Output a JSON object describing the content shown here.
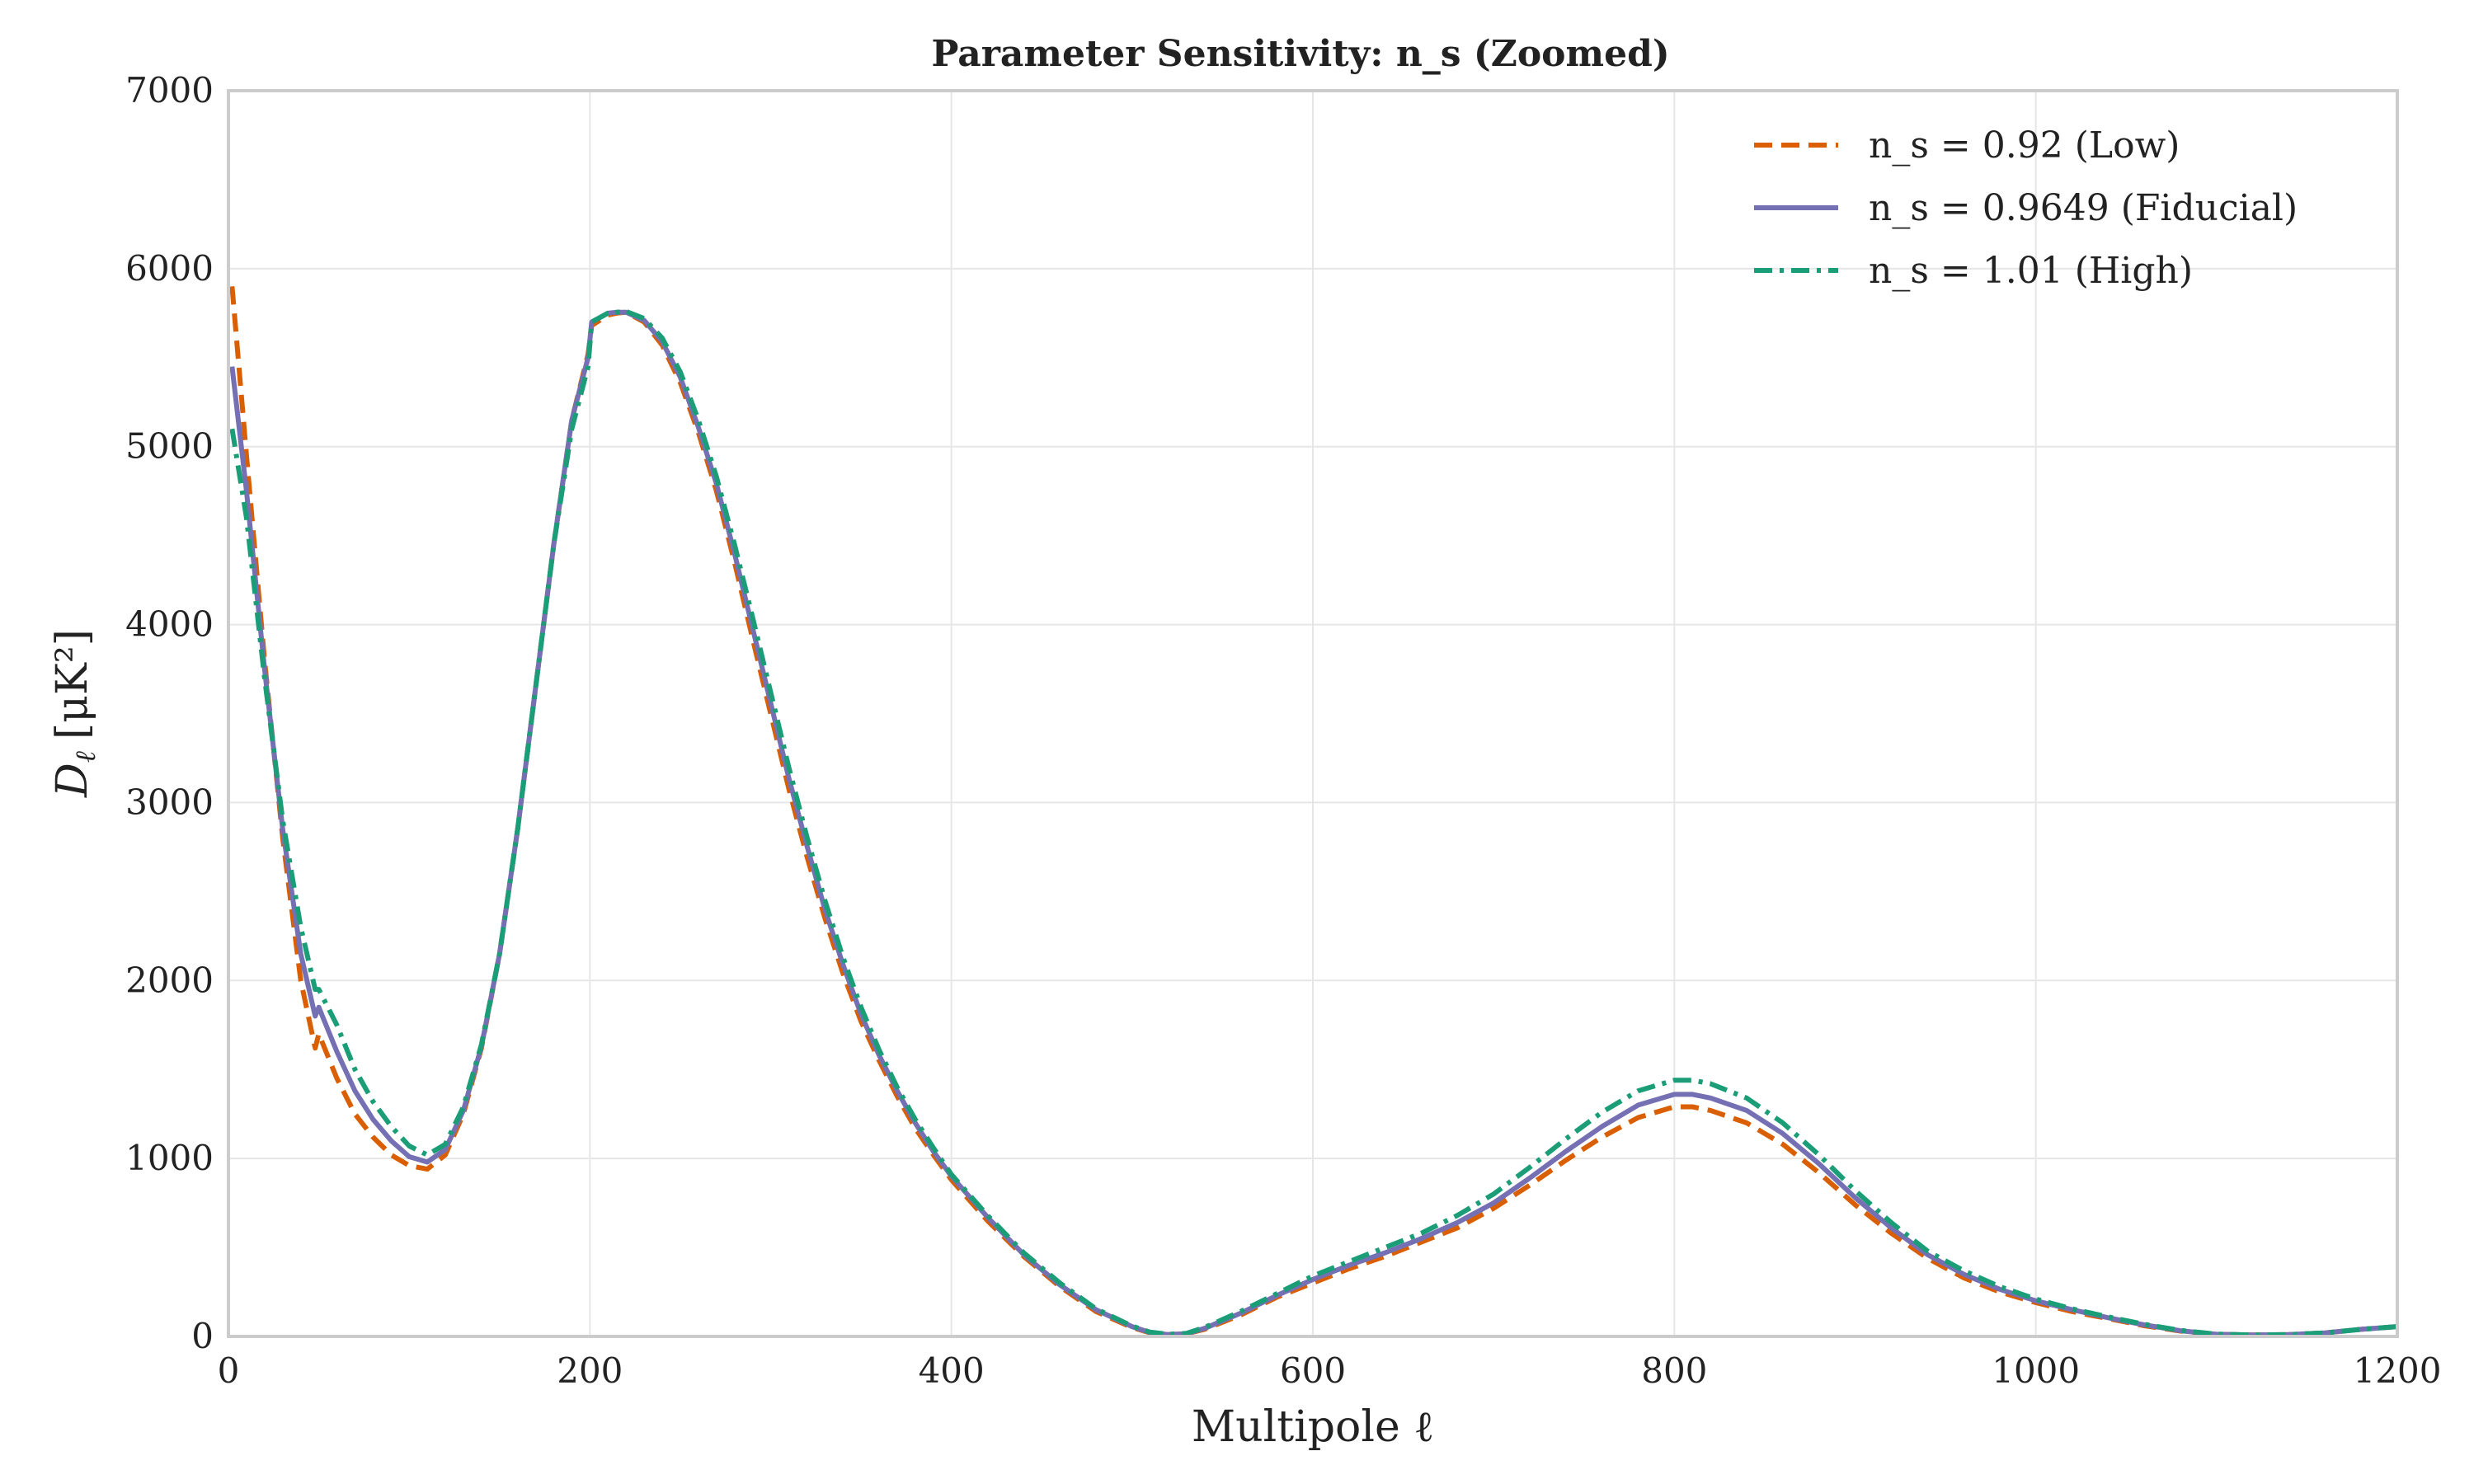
{
  "chart_data": {
    "type": "line",
    "title": "Parameter Sensitivity: n_s (Zoomed)",
    "xlabel": "Multipole ℓ",
    "ylabel_main": "D",
    "ylabel_sub": "ℓ",
    "ylabel_unit": "[μK²]",
    "xlim": [
      0,
      1200
    ],
    "ylim": [
      0,
      7000
    ],
    "x_ticks": [
      0,
      200,
      400,
      600,
      800,
      1000,
      1200
    ],
    "y_ticks": [
      0,
      1000,
      2000,
      3000,
      4000,
      5000,
      6000,
      7000
    ],
    "grid": true,
    "legend_position": "top-right",
    "series": [
      {
        "name": "n_s = 0.92 (Low)",
        "color": "#d95f02",
        "style": "dashed",
        "points": [
          [
            2,
            5900
          ],
          [
            10,
            4950
          ],
          [
            20,
            3800
          ],
          [
            30,
            2800
          ],
          [
            40,
            2000
          ],
          [
            48,
            1620
          ],
          [
            50,
            1700
          ],
          [
            60,
            1450
          ],
          [
            70,
            1250
          ],
          [
            80,
            1120
          ],
          [
            90,
            1020
          ],
          [
            100,
            960
          ],
          [
            110,
            940
          ],
          [
            120,
            1020
          ],
          [
            130,
            1250
          ],
          [
            140,
            1620
          ],
          [
            150,
            2150
          ],
          [
            160,
            2850
          ],
          [
            170,
            3650
          ],
          [
            180,
            4450
          ],
          [
            190,
            5150
          ],
          [
            199,
            5520
          ],
          [
            201,
            5680
          ],
          [
            210,
            5740
          ],
          [
            215,
            5750
          ],
          [
            220,
            5755
          ],
          [
            230,
            5700
          ],
          [
            240,
            5570
          ],
          [
            250,
            5360
          ],
          [
            260,
            5080
          ],
          [
            270,
            4750
          ],
          [
            280,
            4350
          ],
          [
            290,
            3920
          ],
          [
            300,
            3500
          ],
          [
            310,
            3080
          ],
          [
            320,
            2700
          ],
          [
            330,
            2350
          ],
          [
            340,
            2040
          ],
          [
            350,
            1770
          ],
          [
            360,
            1550
          ],
          [
            370,
            1350
          ],
          [
            380,
            1170
          ],
          [
            390,
            1020
          ],
          [
            400,
            880
          ],
          [
            420,
            650
          ],
          [
            440,
            450
          ],
          [
            460,
            280
          ],
          [
            480,
            140
          ],
          [
            500,
            50
          ],
          [
            510,
            20
          ],
          [
            520,
            10
          ],
          [
            530,
            15
          ],
          [
            540,
            40
          ],
          [
            560,
            120
          ],
          [
            580,
            220
          ],
          [
            600,
            300
          ],
          [
            620,
            380
          ],
          [
            640,
            450
          ],
          [
            660,
            530
          ],
          [
            680,
            610
          ],
          [
            700,
            720
          ],
          [
            720,
            850
          ],
          [
            740,
            990
          ],
          [
            760,
            1120
          ],
          [
            780,
            1230
          ],
          [
            800,
            1290
          ],
          [
            810,
            1290
          ],
          [
            820,
            1270
          ],
          [
            840,
            1200
          ],
          [
            860,
            1080
          ],
          [
            880,
            920
          ],
          [
            900,
            740
          ],
          [
            920,
            580
          ],
          [
            940,
            440
          ],
          [
            960,
            330
          ],
          [
            980,
            250
          ],
          [
            1000,
            190
          ],
          [
            1020,
            140
          ],
          [
            1040,
            100
          ],
          [
            1060,
            60
          ],
          [
            1080,
            30
          ],
          [
            1100,
            12
          ],
          [
            1120,
            8
          ],
          [
            1140,
            10
          ],
          [
            1160,
            20
          ],
          [
            1180,
            40
          ],
          [
            1200,
            55
          ]
        ]
      },
      {
        "name": "n_s = 0.9649 (Fiducial)",
        "color": "#7570b3",
        "style": "solid",
        "points": [
          [
            2,
            5450
          ],
          [
            10,
            4750
          ],
          [
            20,
            3750
          ],
          [
            30,
            2850
          ],
          [
            40,
            2150
          ],
          [
            48,
            1800
          ],
          [
            50,
            1850
          ],
          [
            60,
            1600
          ],
          [
            70,
            1380
          ],
          [
            80,
            1220
          ],
          [
            90,
            1100
          ],
          [
            100,
            1010
          ],
          [
            110,
            980
          ],
          [
            120,
            1050
          ],
          [
            130,
            1270
          ],
          [
            140,
            1630
          ],
          [
            150,
            2150
          ],
          [
            160,
            2850
          ],
          [
            170,
            3650
          ],
          [
            180,
            4450
          ],
          [
            190,
            5150
          ],
          [
            199,
            5500
          ],
          [
            201,
            5700
          ],
          [
            210,
            5750
          ],
          [
            215,
            5755
          ],
          [
            220,
            5755
          ],
          [
            230,
            5710
          ],
          [
            240,
            5590
          ],
          [
            250,
            5390
          ],
          [
            260,
            5110
          ],
          [
            270,
            4790
          ],
          [
            280,
            4400
          ],
          [
            290,
            3980
          ],
          [
            300,
            3560
          ],
          [
            310,
            3140
          ],
          [
            320,
            2760
          ],
          [
            330,
            2400
          ],
          [
            340,
            2090
          ],
          [
            350,
            1810
          ],
          [
            360,
            1580
          ],
          [
            370,
            1380
          ],
          [
            380,
            1200
          ],
          [
            390,
            1040
          ],
          [
            400,
            900
          ],
          [
            420,
            670
          ],
          [
            440,
            460
          ],
          [
            460,
            290
          ],
          [
            480,
            150
          ],
          [
            500,
            55
          ],
          [
            510,
            22
          ],
          [
            520,
            10
          ],
          [
            530,
            15
          ],
          [
            540,
            45
          ],
          [
            560,
            130
          ],
          [
            580,
            230
          ],
          [
            600,
            320
          ],
          [
            620,
            400
          ],
          [
            640,
            470
          ],
          [
            660,
            550
          ],
          [
            680,
            640
          ],
          [
            700,
            750
          ],
          [
            720,
            890
          ],
          [
            740,
            1040
          ],
          [
            760,
            1180
          ],
          [
            780,
            1300
          ],
          [
            800,
            1360
          ],
          [
            810,
            1360
          ],
          [
            820,
            1340
          ],
          [
            840,
            1270
          ],
          [
            860,
            1140
          ],
          [
            880,
            970
          ],
          [
            900,
            780
          ],
          [
            920,
            610
          ],
          [
            940,
            460
          ],
          [
            960,
            350
          ],
          [
            980,
            265
          ],
          [
            1000,
            200
          ],
          [
            1020,
            150
          ],
          [
            1040,
            105
          ],
          [
            1060,
            65
          ],
          [
            1080,
            32
          ],
          [
            1100,
            12
          ],
          [
            1120,
            8
          ],
          [
            1140,
            10
          ],
          [
            1160,
            20
          ],
          [
            1180,
            40
          ],
          [
            1200,
            55
          ]
        ]
      },
      {
        "name": "n_s = 1.01 (High)",
        "color": "#1b9e77",
        "style": "dashdot",
        "points": [
          [
            2,
            5100
          ],
          [
            10,
            4600
          ],
          [
            20,
            3700
          ],
          [
            30,
            2900
          ],
          [
            40,
            2300
          ],
          [
            48,
            1950
          ],
          [
            50,
            1950
          ],
          [
            60,
            1750
          ],
          [
            70,
            1500
          ],
          [
            80,
            1320
          ],
          [
            90,
            1180
          ],
          [
            100,
            1070
          ],
          [
            110,
            1020
          ],
          [
            120,
            1080
          ],
          [
            130,
            1290
          ],
          [
            140,
            1640
          ],
          [
            150,
            2150
          ],
          [
            160,
            2850
          ],
          [
            170,
            3650
          ],
          [
            180,
            4450
          ],
          [
            190,
            5100
          ],
          [
            199,
            5450
          ],
          [
            201,
            5700
          ],
          [
            210,
            5750
          ],
          [
            215,
            5755
          ],
          [
            220,
            5760
          ],
          [
            230,
            5720
          ],
          [
            240,
            5610
          ],
          [
            250,
            5420
          ],
          [
            260,
            5150
          ],
          [
            270,
            4830
          ],
          [
            280,
            4450
          ],
          [
            290,
            4040
          ],
          [
            300,
            3620
          ],
          [
            310,
            3200
          ],
          [
            320,
            2810
          ],
          [
            330,
            2450
          ],
          [
            340,
            2130
          ],
          [
            350,
            1850
          ],
          [
            360,
            1610
          ],
          [
            370,
            1400
          ],
          [
            380,
            1220
          ],
          [
            390,
            1060
          ],
          [
            400,
            910
          ],
          [
            420,
            680
          ],
          [
            440,
            470
          ],
          [
            460,
            300
          ],
          [
            480,
            155
          ],
          [
            500,
            58
          ],
          [
            510,
            24
          ],
          [
            520,
            12
          ],
          [
            530,
            17
          ],
          [
            540,
            50
          ],
          [
            560,
            140
          ],
          [
            580,
            240
          ],
          [
            600,
            340
          ],
          [
            620,
            420
          ],
          [
            640,
            500
          ],
          [
            660,
            580
          ],
          [
            680,
            680
          ],
          [
            700,
            800
          ],
          [
            720,
            950
          ],
          [
            740,
            1110
          ],
          [
            760,
            1260
          ],
          [
            780,
            1380
          ],
          [
            800,
            1440
          ],
          [
            810,
            1440
          ],
          [
            820,
            1420
          ],
          [
            840,
            1340
          ],
          [
            860,
            1200
          ],
          [
            880,
            1020
          ],
          [
            900,
            820
          ],
          [
            920,
            640
          ],
          [
            940,
            480
          ],
          [
            960,
            370
          ],
          [
            980,
            280
          ],
          [
            1000,
            210
          ],
          [
            1020,
            155
          ],
          [
            1040,
            110
          ],
          [
            1060,
            68
          ],
          [
            1080,
            34
          ],
          [
            1100,
            13
          ],
          [
            1120,
            8
          ],
          [
            1140,
            10
          ],
          [
            1160,
            20
          ],
          [
            1180,
            40
          ],
          [
            1200,
            55
          ]
        ]
      }
    ]
  }
}
